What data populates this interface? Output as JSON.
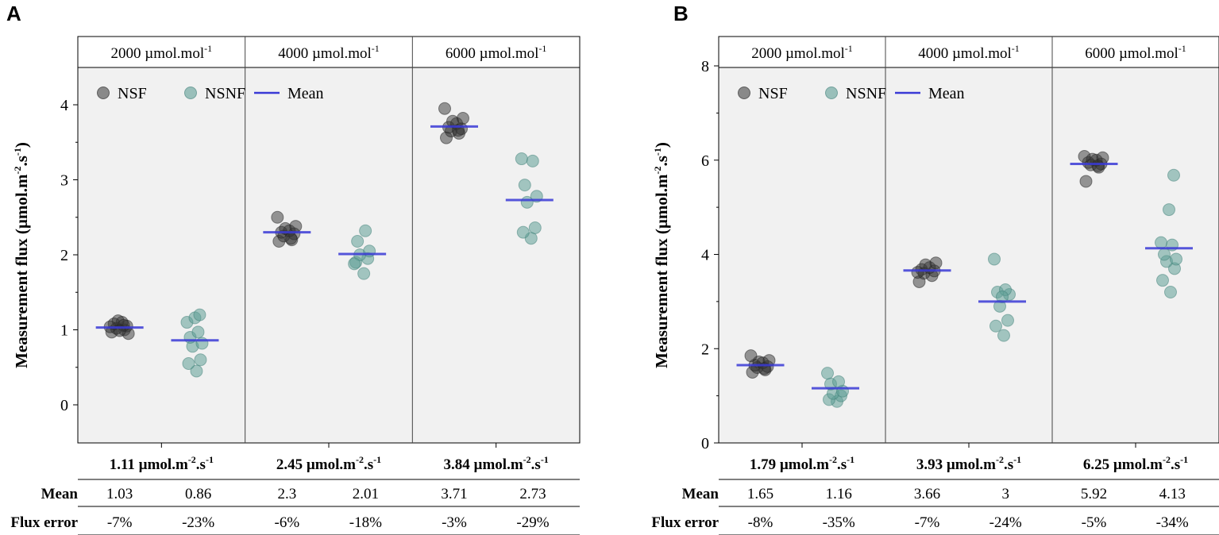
{
  "chart_data": [
    {
      "type": "scatter",
      "panel": "A",
      "ylabel": "Measurement flux (µmol.m-2.s-1)",
      "ylabel_parts": {
        "main": "Measurement flux (µmol.m",
        "exp1": "-2",
        "mid": ".s",
        "exp2": "-1",
        "end": ")"
      },
      "ylim": [
        -0.5,
        4.5
      ],
      "yticks": [
        0,
        1,
        2,
        3,
        4
      ],
      "yticklabels": [
        "0",
        "1",
        "2",
        "3",
        "4"
      ],
      "legend": {
        "nsf": "NSF",
        "nsnf": "NSNF",
        "mean": "Mean"
      },
      "groups": [
        {
          "header": "2000 µmol.mol",
          "header_exp": "-1",
          "truth": "1.11 µmol.m",
          "truth_exp1": "-2",
          "truth_mid": ".s",
          "truth_exp2": "-1",
          "mean_nsf": "1.03",
          "mean_nsnf": "0.86",
          "err_nsf": "-7%",
          "err_nsnf": "-23%",
          "mean_nsf_value": 1.03,
          "mean_nsnf_value": 0.86,
          "nsf_points": [
            0.97,
            1.0,
            1.02,
            1.05,
            1.08,
            1.1,
            1.12,
            0.95,
            1.04,
            1.06,
            0.99
          ],
          "nsnf_points": [
            0.45,
            0.55,
            0.6,
            0.78,
            0.82,
            0.9,
            0.97,
            1.1,
            1.16,
            1.2
          ]
        },
        {
          "header": "4000 µmol.mol",
          "header_exp": "-1",
          "truth": "2.45 µmol.m",
          "truth_exp1": "-2",
          "truth_mid": ".s",
          "truth_exp2": "-1",
          "mean_nsf": "2.3",
          "mean_nsnf": "2.01",
          "err_nsf": "-6%",
          "err_nsnf": "-18%",
          "mean_nsf_value": 2.3,
          "mean_nsnf_value": 2.01,
          "nsf_points": [
            2.18,
            2.2,
            2.25,
            2.28,
            2.3,
            2.32,
            2.35,
            2.38,
            2.5,
            2.22
          ],
          "nsnf_points": [
            1.75,
            1.9,
            1.95,
            2.0,
            2.05,
            2.18,
            2.32,
            1.88
          ]
        },
        {
          "header": "6000 µmol.mol",
          "header_exp": "-1",
          "truth": "3.84 µmol.m",
          "truth_exp1": "-2",
          "truth_mid": ".s",
          "truth_exp2": "-1",
          "mean_nsf": "3.71",
          "mean_nsnf": "2.73",
          "err_nsf": "-3%",
          "err_nsnf": "-29%",
          "mean_nsf_value": 3.71,
          "mean_nsnf_value": 2.73,
          "nsf_points": [
            3.56,
            3.62,
            3.65,
            3.68,
            3.7,
            3.75,
            3.78,
            3.82,
            3.95,
            3.66
          ],
          "nsnf_points": [
            2.22,
            2.3,
            2.36,
            2.7,
            2.78,
            2.93,
            3.25,
            3.28
          ]
        }
      ]
    },
    {
      "type": "scatter",
      "panel": "B",
      "ylabel": "Measurement flux (µmol.m-2.s-1)",
      "ylabel_parts": {
        "main": "Measurement flux (µmol.m",
        "exp1": "-2",
        "mid": ".s",
        "exp2": "-1",
        "end": ")"
      },
      "ylim": [
        0,
        8
      ],
      "yticks": [
        0,
        2,
        4,
        6,
        8
      ],
      "yticklabels": [
        "0",
        "2",
        "4",
        "6",
        "8"
      ],
      "legend": {
        "nsf": "NSF",
        "nsnf": "NSNF",
        "mean": "Mean"
      },
      "groups": [
        {
          "header": "2000 µmol.mol",
          "header_exp": "-1",
          "truth": "1.79 µmol.m",
          "truth_exp1": "-2",
          "truth_mid": ".s",
          "truth_exp2": "-1",
          "mean_nsf": "1.65",
          "mean_nsnf": "1.16",
          "err_nsf": "-8%",
          "err_nsnf": "-35%",
          "mean_nsf_value": 1.65,
          "mean_nsnf_value": 1.16,
          "nsf_points": [
            1.5,
            1.55,
            1.6,
            1.62,
            1.65,
            1.7,
            1.72,
            1.75,
            1.85,
            1.58
          ],
          "nsnf_points": [
            0.88,
            0.92,
            1.0,
            1.05,
            1.1,
            1.25,
            1.3,
            1.48
          ]
        },
        {
          "header": "4000 µmol.mol",
          "header_exp": "-1",
          "truth": "3.93 µmol.m",
          "truth_exp1": "-2",
          "truth_mid": ".s",
          "truth_exp2": "-1",
          "mean_nsf": "3.66",
          "mean_nsnf": "3",
          "err_nsf": "-7%",
          "err_nsnf": "-24%",
          "mean_nsf_value": 3.66,
          "mean_nsnf_value": 3.0,
          "nsf_points": [
            3.42,
            3.55,
            3.6,
            3.65,
            3.68,
            3.72,
            3.78,
            3.82,
            3.62
          ],
          "nsnf_points": [
            2.28,
            2.48,
            2.6,
            2.9,
            3.15,
            3.2,
            3.25,
            3.9,
            3.1
          ]
        },
        {
          "header": "6000 µmol.mol",
          "header_exp": "-1",
          "truth": "6.25 µmol.m",
          "truth_exp1": "-2",
          "truth_mid": ".s",
          "truth_exp2": "-1",
          "mean_nsf": "5.92",
          "mean_nsnf": "4.13",
          "err_nsf": "-5%",
          "err_nsnf": "-34%",
          "mean_nsf_value": 5.92,
          "mean_nsnf_value": 4.13,
          "nsf_points": [
            5.55,
            5.85,
            5.9,
            5.92,
            5.95,
            6.0,
            6.02,
            6.05,
            6.08,
            5.88
          ],
          "nsnf_points": [
            3.2,
            3.45,
            3.7,
            3.85,
            3.9,
            4.0,
            4.2,
            4.25,
            4.95,
            5.68
          ]
        }
      ]
    }
  ],
  "table_labels": {
    "mean": "Mean",
    "flux_error": "Flux error"
  },
  "colors": {
    "nsf": "#333333",
    "nsnf": "#5f9e96",
    "mean": "#3a3ad6",
    "plot_bg": "#f1f1f1",
    "rule": "#000000"
  }
}
